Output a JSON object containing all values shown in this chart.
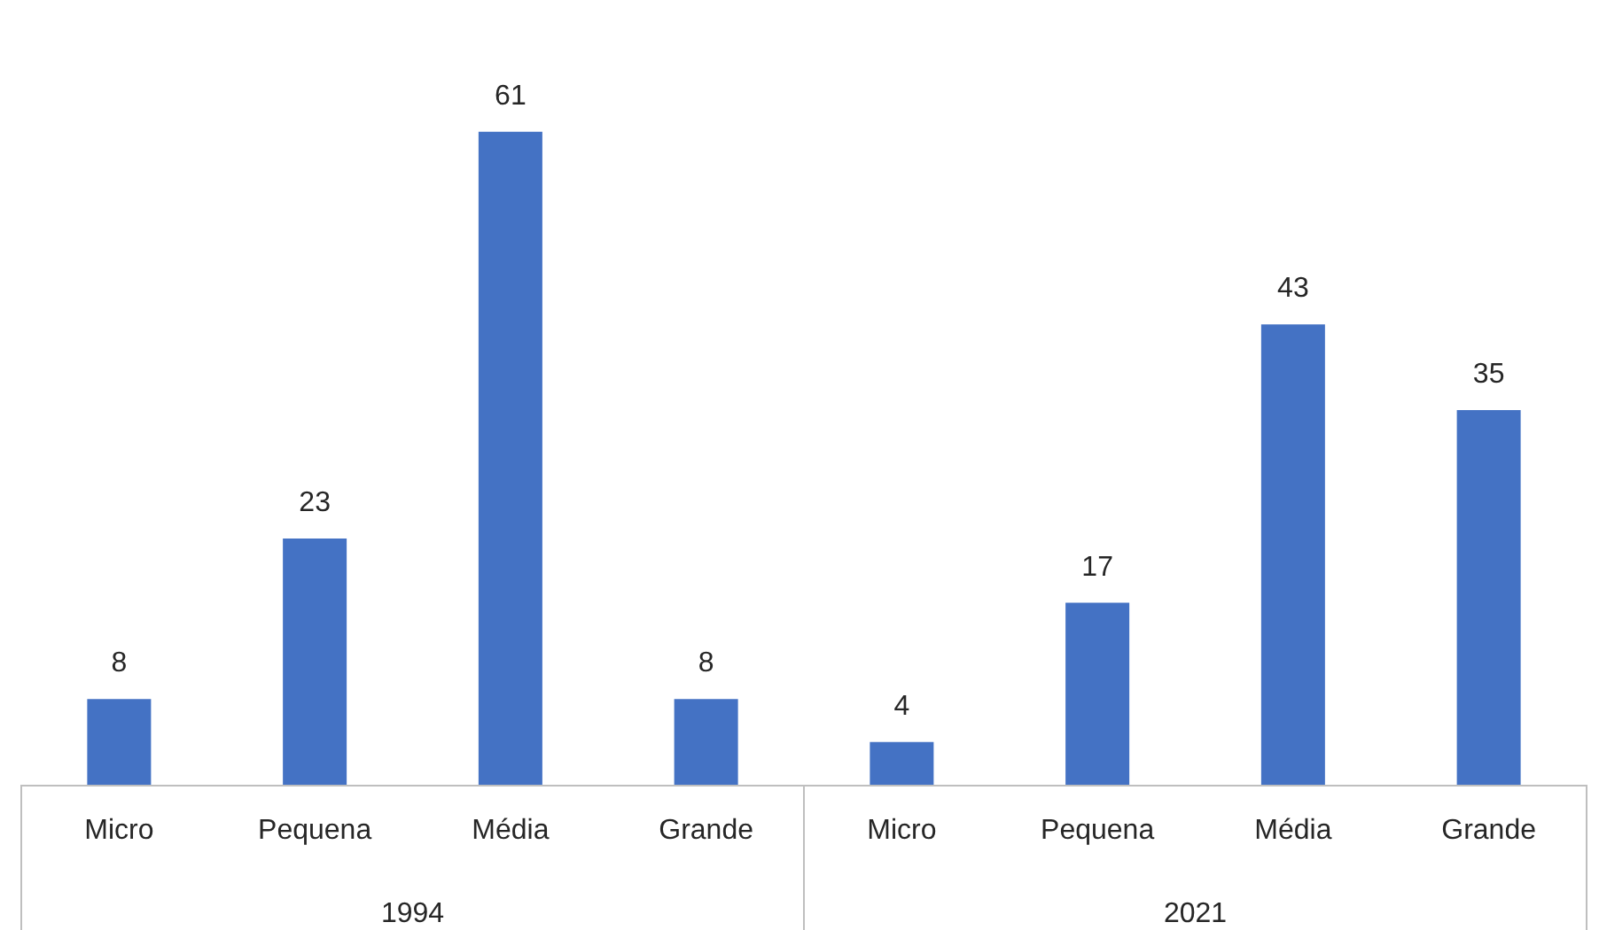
{
  "chart_data": {
    "type": "bar",
    "categories": [
      "Micro",
      "Pequena",
      "Média",
      "Grande",
      "Micro",
      "Pequena",
      "Média",
      "Grande"
    ],
    "values": [
      8,
      23,
      61,
      8,
      4,
      17,
      43,
      35
    ],
    "color": "#4472c4",
    "data_labels": true,
    "annotations": [
      "1994",
      "2021"
    ]
  }
}
